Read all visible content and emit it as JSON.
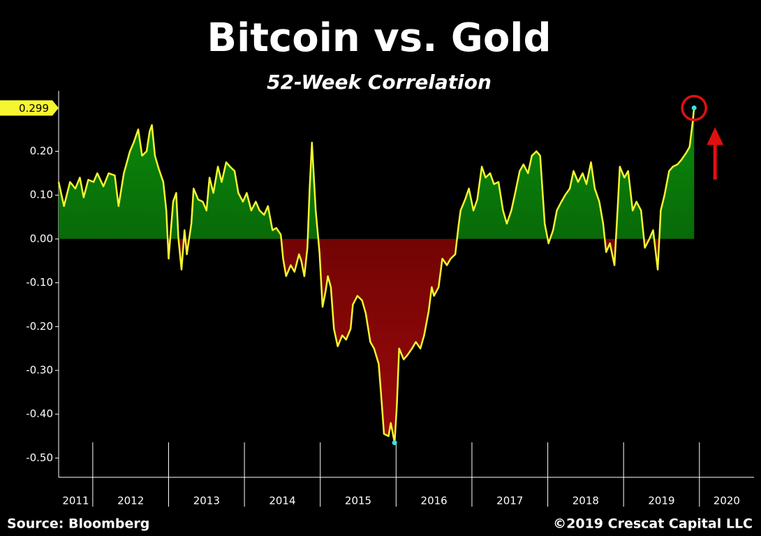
{
  "chart_data": {
    "type": "area",
    "title": "Bitcoin vs. Gold",
    "subtitle": "52-Week Correlation",
    "source": "Source: Bloomberg",
    "copyright": "©2019 Crescat Capital LLC",
    "xlim": [
      2011.55,
      2020.72
    ],
    "xticks": [
      2012,
      2013,
      2014,
      2015,
      2016,
      2017,
      2018,
      2019,
      2020
    ],
    "year_labels": [
      2011,
      2012,
      2013,
      2014,
      2015,
      2016,
      2017,
      2018,
      2019,
      2020
    ],
    "ylim": [
      -0.544,
      0.338
    ],
    "yticks": [
      {
        "value": -0.5,
        "label": "-0.50"
      },
      {
        "value": -0.4,
        "label": "-0.40"
      },
      {
        "value": -0.3,
        "label": "-0.30"
      },
      {
        "value": -0.2,
        "label": "-0.20"
      },
      {
        "value": -0.1,
        "label": "-0.10"
      },
      {
        "value": 0,
        "label": "0.00"
      },
      {
        "value": 0.1,
        "label": "0.10"
      },
      {
        "value": 0.2,
        "label": "0.20"
      }
    ],
    "highlight": {
      "value": 0.299,
      "label": "0.299"
    },
    "line_color": "#f5f530",
    "positive_color": "#0a8a0a",
    "negative_color": "#9a0a0a",
    "x": [
      2011.55,
      2011.62,
      2011.7,
      2011.77,
      2011.83,
      2011.88,
      2011.94,
      2012.01,
      2012.06,
      2012.14,
      2012.21,
      2012.29,
      2012.34,
      2012.41,
      2012.49,
      2012.54,
      2012.6,
      2012.65,
      2012.71,
      2012.75,
      2012.78,
      2012.82,
      2012.87,
      2012.93,
      2012.97,
      2013.0,
      2013.06,
      2013.1,
      2013.13,
      2013.17,
      2013.21,
      2013.24,
      2013.3,
      2013.33,
      2013.39,
      2013.45,
      2013.5,
      2013.54,
      2013.59,
      2013.65,
      2013.7,
      2013.76,
      2013.81,
      2013.87,
      2013.92,
      2013.98,
      2014.03,
      2014.09,
      2014.15,
      2014.2,
      2014.26,
      2014.31,
      2014.37,
      2014.42,
      2014.48,
      2014.51,
      2014.55,
      2014.61,
      2014.66,
      2014.72,
      2014.75,
      2014.79,
      2014.83,
      2014.86,
      2014.89,
      2014.94,
      2014.99,
      2015.03,
      2015.07,
      2015.1,
      2015.14,
      2015.18,
      2015.23,
      2015.29,
      2015.34,
      2015.4,
      2015.43,
      2015.49,
      2015.55,
      2015.6,
      2015.66,
      2015.71,
      2015.77,
      2015.8,
      2015.84,
      2015.9,
      2015.93,
      2015.98,
      2016.01,
      2016.04,
      2016.1,
      2016.15,
      2016.21,
      2016.26,
      2016.32,
      2016.37,
      2016.43,
      2016.47,
      2016.5,
      2016.56,
      2016.61,
      2016.67,
      2016.72,
      2016.78,
      2016.82,
      2016.85,
      2016.91,
      2016.96,
      2017.02,
      2017.07,
      2017.13,
      2017.18,
      2017.24,
      2017.29,
      2017.35,
      2017.41,
      2017.46,
      2017.52,
      2017.57,
      2017.63,
      2017.68,
      2017.74,
      2017.79,
      2017.85,
      2017.9,
      2017.96,
      2018.01,
      2018.07,
      2018.12,
      2018.18,
      2018.23,
      2018.29,
      2018.34,
      2018.4,
      2018.46,
      2018.51,
      2018.57,
      2018.62,
      2018.68,
      2018.73,
      2018.77,
      2018.82,
      2018.88,
      2018.92,
      2018.95,
      2019.01,
      2019.06,
      2019.12,
      2019.17,
      2019.23,
      2019.28,
      2019.34,
      2019.39,
      2019.45,
      2019.49,
      2019.54,
      2019.6,
      2019.65,
      2019.71,
      2019.76,
      2019.82,
      2019.87,
      2019.91,
      2019.93
    ],
    "values": [
      0.13,
      0.075,
      0.13,
      0.115,
      0.14,
      0.095,
      0.135,
      0.13,
      0.15,
      0.12,
      0.15,
      0.145,
      0.075,
      0.15,
      0.2,
      0.22,
      0.25,
      0.19,
      0.2,
      0.245,
      0.26,
      0.19,
      0.16,
      0.13,
      0.065,
      -0.045,
      0.085,
      0.105,
      0.0,
      -0.07,
      0.02,
      -0.035,
      0.035,
      0.115,
      0.09,
      0.085,
      0.065,
      0.14,
      0.105,
      0.165,
      0.13,
      0.175,
      0.165,
      0.155,
      0.105,
      0.085,
      0.105,
      0.065,
      0.085,
      0.065,
      0.055,
      0.075,
      0.02,
      0.025,
      0.01,
      -0.045,
      -0.085,
      -0.06,
      -0.075,
      -0.035,
      -0.05,
      -0.085,
      -0.02,
      0.115,
      0.22,
      0.065,
      -0.03,
      -0.155,
      -0.12,
      -0.085,
      -0.11,
      -0.205,
      -0.245,
      -0.22,
      -0.23,
      -0.205,
      -0.15,
      -0.13,
      -0.14,
      -0.17,
      -0.235,
      -0.25,
      -0.285,
      -0.35,
      -0.445,
      -0.45,
      -0.42,
      -0.465,
      -0.38,
      -0.25,
      -0.275,
      -0.265,
      -0.25,
      -0.235,
      -0.25,
      -0.22,
      -0.165,
      -0.11,
      -0.13,
      -0.11,
      -0.045,
      -0.06,
      -0.045,
      -0.035,
      0.025,
      0.065,
      0.09,
      0.115,
      0.065,
      0.09,
      0.165,
      0.14,
      0.15,
      0.125,
      0.13,
      0.065,
      0.035,
      0.065,
      0.105,
      0.155,
      0.17,
      0.15,
      0.19,
      0.2,
      0.19,
      0.035,
      -0.01,
      0.02,
      0.065,
      0.085,
      0.1,
      0.115,
      0.155,
      0.13,
      0.15,
      0.125,
      0.175,
      0.115,
      0.085,
      0.035,
      -0.03,
      -0.01,
      -0.06,
      0.065,
      0.165,
      0.14,
      0.155,
      0.065,
      0.085,
      0.065,
      -0.02,
      0.0,
      0.02,
      -0.07,
      0.065,
      0.1,
      0.155,
      0.165,
      0.17,
      0.18,
      0.195,
      0.21,
      0.265,
      0.299
    ]
  }
}
